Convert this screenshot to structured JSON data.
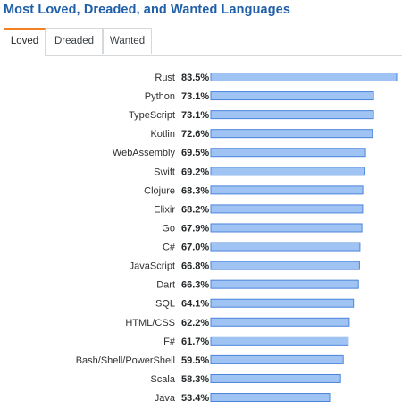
{
  "title": "Most Loved, Dreaded, and Wanted Languages",
  "tabs": [
    {
      "label": "Loved",
      "active": true
    },
    {
      "label": "Dreaded",
      "active": false
    },
    {
      "label": "Wanted",
      "active": false
    }
  ],
  "colors": {
    "bar_fill": "#9fc3f3",
    "bar_stroke": "#4b84dc",
    "title": "#1f5fa8",
    "active_tab_accent": "#f48024"
  },
  "chart_data": {
    "type": "bar",
    "orientation": "horizontal",
    "title": "",
    "xlabel": "",
    "ylabel": "",
    "grid": false,
    "value_suffix": "%",
    "categories": [
      "Rust",
      "Python",
      "TypeScript",
      "Kotlin",
      "WebAssembly",
      "Swift",
      "Clojure",
      "Elixir",
      "Go",
      "C#",
      "JavaScript",
      "Dart",
      "SQL",
      "HTML/CSS",
      "F#",
      "Bash/Shell/PowerShell",
      "Scala",
      "Java"
    ],
    "values": [
      83.5,
      73.1,
      73.1,
      72.6,
      69.5,
      69.2,
      68.3,
      68.2,
      67.9,
      67.0,
      66.8,
      66.3,
      64.1,
      62.2,
      61.7,
      59.5,
      58.3,
      53.4
    ],
    "value_labels": [
      "83.5%",
      "73.1%",
      "73.1%",
      "72.6%",
      "69.5%",
      "69.2%",
      "68.3%",
      "68.2%",
      "67.9%",
      "67.0%",
      "66.8%",
      "66.3%",
      "64.1%",
      "62.2%",
      "61.7%",
      "59.5%",
      "58.3%",
      "53.4%"
    ]
  }
}
